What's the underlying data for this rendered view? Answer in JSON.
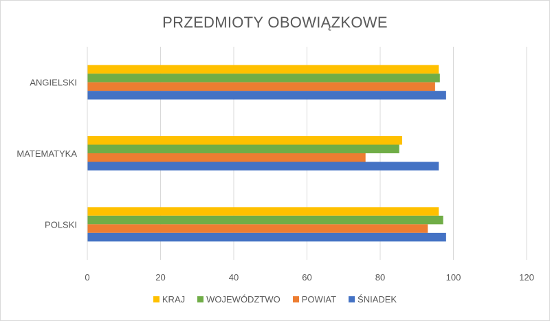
{
  "chart_data": {
    "type": "bar",
    "orientation": "horizontal",
    "title": "PRZEDMIOTY OBOWIĄZKOWE",
    "categories": [
      "ANGIELSKI",
      "MATEMATYKA",
      "POLSKI"
    ],
    "series": [
      {
        "name": "KRAJ",
        "color": "#ffc000",
        "values": [
          96,
          86,
          96
        ]
      },
      {
        "name": "WOJEWÓDZTWO",
        "color": "#70ad47",
        "values": [
          96.3,
          85.2,
          97.2
        ]
      },
      {
        "name": "POWIAT",
        "color": "#ed7d31",
        "values": [
          95,
          76,
          93
        ]
      },
      {
        "name": "ŚNIADEK",
        "color": "#4472c4",
        "values": [
          98,
          96,
          98
        ]
      }
    ],
    "xlim": [
      0,
      120
    ],
    "xticks": [
      "0",
      "20",
      "40",
      "60",
      "80",
      "100",
      "120"
    ],
    "grid": true,
    "legend_position": "bottom"
  }
}
